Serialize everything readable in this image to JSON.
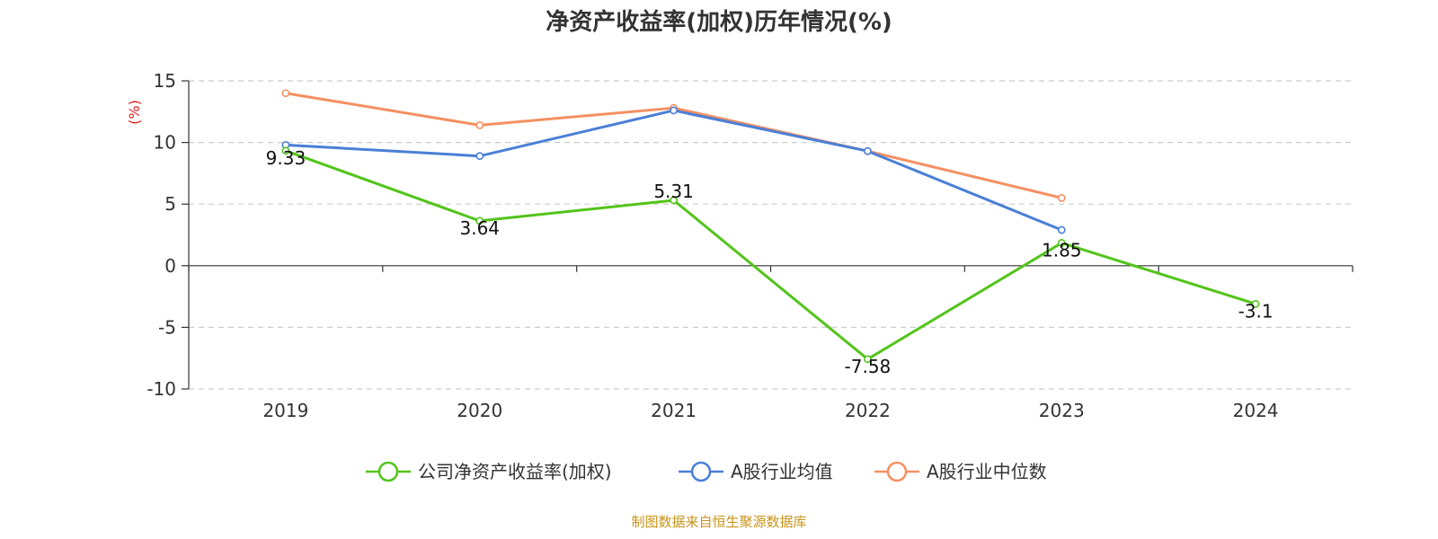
{
  "chart_data": {
    "type": "line",
    "title": "净资产收益率(加权)历年情况(%)",
    "ylabel": "(%)",
    "ylim": [
      -10,
      15
    ],
    "yticks": [
      15,
      10,
      5,
      0,
      -5,
      -10
    ],
    "categories": [
      "2019",
      "2020",
      "2021",
      "2022",
      "2023",
      "2024"
    ],
    "grid": true,
    "legend_position": "bottom",
    "series": [
      {
        "name": "公司净资产收益率(加权)",
        "color": "#52c41a",
        "values": [
          9.33,
          3.64,
          5.31,
          -7.58,
          1.85,
          -3.1
        ],
        "show_labels": true
      },
      {
        "name": "A股行业均值",
        "color": "#4a7fd6",
        "values": [
          9.8,
          8.9,
          12.6,
          9.3,
          2.9,
          null
        ],
        "show_labels": false
      },
      {
        "name": "A股行业中位数",
        "color": "#f59062",
        "values": [
          14.0,
          11.4,
          12.8,
          9.3,
          5.5,
          null
        ],
        "show_labels": false
      }
    ]
  },
  "source_text": "制图数据来自恒生聚源数据库",
  "colors": {
    "ylabel": "#e02020",
    "source": "#c8941a",
    "grid": "#cccccc",
    "axis": "#333333"
  }
}
